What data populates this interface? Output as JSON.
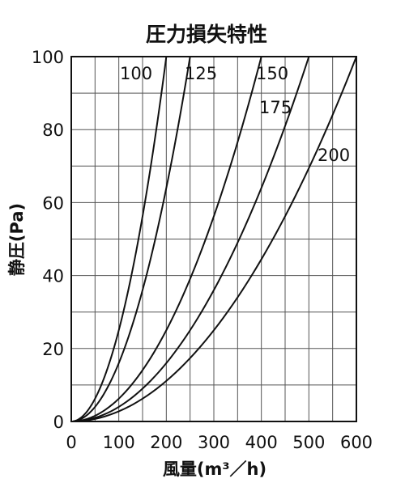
{
  "chart_data": {
    "type": "line",
    "title": "圧力損失特性",
    "xlabel": "風量(m³／h)",
    "ylabel": "静圧(Pa)",
    "xlim": [
      0,
      600
    ],
    "ylim": [
      0,
      100
    ],
    "x_ticks": [
      "0",
      "100",
      "200",
      "300",
      "400",
      "500",
      "600"
    ],
    "y_ticks": [
      "0",
      "20",
      "40",
      "60",
      "80",
      "100"
    ],
    "grid": true,
    "series": [
      {
        "name": "100",
        "x": [
          0,
          50,
          100,
          150,
          200
        ],
        "y": [
          0,
          6,
          26,
          57,
          100
        ]
      },
      {
        "name": "125",
        "x": [
          0,
          50,
          100,
          150,
          200,
          250
        ],
        "y": [
          0,
          3,
          13,
          28,
          52,
          100
        ]
      },
      {
        "name": "150",
        "x": [
          0,
          50,
          100,
          150,
          200,
          250,
          300,
          350,
          400
        ],
        "y": [
          0,
          1.5,
          6,
          14,
          25,
          40,
          60,
          82,
          100
        ]
      },
      {
        "name": "175",
        "x": [
          0,
          100,
          200,
          300,
          400,
          500
        ],
        "y": [
          0,
          3.8,
          15,
          34,
          60,
          100
        ]
      },
      {
        "name": "200",
        "x": [
          0,
          100,
          200,
          300,
          400,
          500,
          600
        ],
        "y": [
          0,
          2.5,
          10,
          22,
          39,
          64,
          100
        ]
      }
    ]
  }
}
